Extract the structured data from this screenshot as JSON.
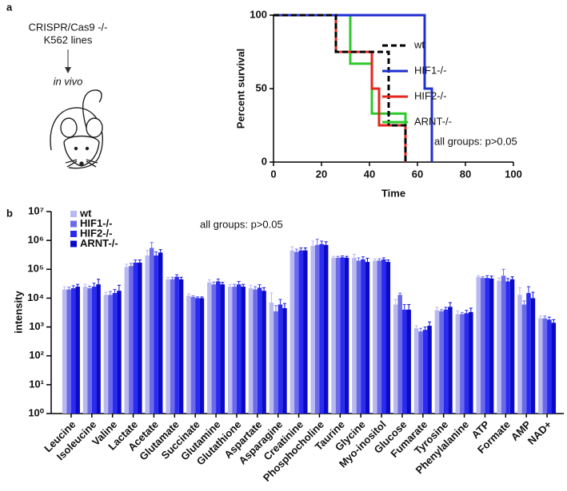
{
  "diagram": {
    "lines": [
      "CRISPR/Cas9 -/-",
      "K562 lines"
    ],
    "caption": "in vivo"
  },
  "chart_data": [
    {
      "type": "line",
      "panel": "a",
      "step": true,
      "ylabel": "Percent survival",
      "xlabel": "Time",
      "annotation": "all groups: p>0.05",
      "legend": "right",
      "xlim": [
        0,
        100
      ],
      "xticks": [
        0,
        20,
        40,
        60,
        80,
        100
      ],
      "ylim": [
        0,
        100
      ],
      "yticks": [
        0,
        50,
        100
      ],
      "series": [
        {
          "name": "wt",
          "color": "#000000",
          "dashed": true,
          "x": [
            0,
            26,
            26,
            48,
            48,
            55,
            55
          ],
          "values": [
            100,
            100,
            75,
            75,
            25,
            25,
            0
          ]
        },
        {
          "name": "HIF1-/-",
          "color": "#1f2fd0",
          "x": [
            0,
            63,
            63,
            66,
            66
          ],
          "values": [
            100,
            100,
            50,
            50,
            0
          ]
        },
        {
          "name": "HIF2-/-",
          "color": "#e8241c",
          "x": [
            0,
            26,
            26,
            41,
            41,
            44,
            44,
            55,
            55
          ],
          "values": [
            100,
            100,
            75,
            75,
            50,
            50,
            25,
            25,
            0
          ]
        },
        {
          "name": "ARNT-/-",
          "color": "#2ec82a",
          "x": [
            0,
            32,
            32,
            41,
            41,
            55,
            55
          ],
          "values": [
            100,
            100,
            67,
            67,
            33,
            33,
            0
          ]
        }
      ]
    },
    {
      "type": "bar",
      "panel": "b",
      "ylabel": "intensity",
      "annotation": "all groups: p>0.05",
      "log_scale": true,
      "legend": "upper left",
      "ylim": [
        1,
        10000000
      ],
      "yticks": [
        {
          "value": 1,
          "label": "10⁰"
        },
        {
          "value": 10,
          "label": "10¹"
        },
        {
          "value": 100,
          "label": "10²"
        },
        {
          "value": 1000,
          "label": "10³"
        },
        {
          "value": 10000,
          "label": "10⁴"
        },
        {
          "value": 100000,
          "label": "10⁵"
        },
        {
          "value": 1000000,
          "label": "10⁶"
        },
        {
          "value": 10000000,
          "label": "10⁷"
        }
      ],
      "categories": [
        "Leucine",
        "Isoleucine",
        "Valine",
        "Lactate",
        "Acetate",
        "Glutamate",
        "Succinate",
        "Glutamine",
        "Glutathione",
        "Aspartate",
        "Asparagine",
        "Creatinine",
        "Phosphocholine",
        "Taurine",
        "Glycine",
        "Myo-inositol",
        "Glucose",
        "Fumarate",
        "Tyrosine",
        "Phenylalanine",
        "ATP",
        "Formate",
        "AMP",
        "NAD+"
      ],
      "series": [
        {
          "name": "wt",
          "color": "#b9b9f2",
          "values": [
            20000,
            25000,
            13000,
            120000,
            300000,
            45000,
            12000,
            35000,
            25000,
            22000,
            7000,
            450000,
            650000,
            250000,
            250000,
            200000,
            6000,
            900,
            3800,
            2800,
            55000,
            40000,
            13000,
            2000
          ],
          "errors": [
            5000,
            5000,
            3000,
            30000,
            150000,
            8000,
            2000,
            8000,
            5000,
            6000,
            8000,
            150000,
            300000,
            30000,
            80000,
            30000,
            3000,
            200,
            1000,
            800,
            5000,
            10000,
            10000,
            400
          ]
        },
        {
          "name": "HIF1-/-",
          "color": "#6b6bea",
          "values": [
            20000,
            22000,
            13000,
            130000,
            550000,
            45000,
            11000,
            30000,
            25000,
            20000,
            3500,
            400000,
            700000,
            250000,
            200000,
            200000,
            13000,
            700,
            3500,
            2800,
            50000,
            60000,
            6000,
            2000
          ],
          "errors": [
            4000,
            4000,
            4000,
            30000,
            300000,
            8000,
            1000,
            6000,
            5000,
            5000,
            2000,
            100000,
            400000,
            30000,
            50000,
            30000,
            2000,
            200,
            500,
            400,
            5000,
            40000,
            2000,
            400
          ]
        },
        {
          "name": "HIF2-/-",
          "color": "#2a2af0",
          "values": [
            22000,
            25000,
            15000,
            170000,
            300000,
            55000,
            10000,
            38000,
            30000,
            23000,
            6000,
            450000,
            750000,
            260000,
            220000,
            220000,
            4000,
            800,
            4000,
            3000,
            50000,
            38000,
            15000,
            1800
          ],
          "errors": [
            5000,
            8000,
            5000,
            40000,
            100000,
            10000,
            1000,
            8000,
            8000,
            6000,
            3000,
            100000,
            200000,
            30000,
            50000,
            30000,
            2000,
            200,
            800,
            800,
            10000,
            10000,
            10000,
            400
          ]
        },
        {
          "name": "ARNT-/-",
          "color": "#0a0ac8",
          "values": [
            25000,
            30000,
            18000,
            170000,
            380000,
            45000,
            10000,
            30000,
            25000,
            18000,
            4500,
            450000,
            700000,
            250000,
            180000,
            180000,
            4000,
            1100,
            5000,
            3300,
            48000,
            45000,
            10000,
            1400
          ],
          "errors": [
            5000,
            15000,
            10000,
            40000,
            100000,
            8000,
            1000,
            5000,
            5000,
            5000,
            2000,
            100000,
            200000,
            30000,
            60000,
            30000,
            2000,
            400,
            2000,
            1200,
            10000,
            10000,
            6000,
            400
          ]
        }
      ]
    }
  ]
}
